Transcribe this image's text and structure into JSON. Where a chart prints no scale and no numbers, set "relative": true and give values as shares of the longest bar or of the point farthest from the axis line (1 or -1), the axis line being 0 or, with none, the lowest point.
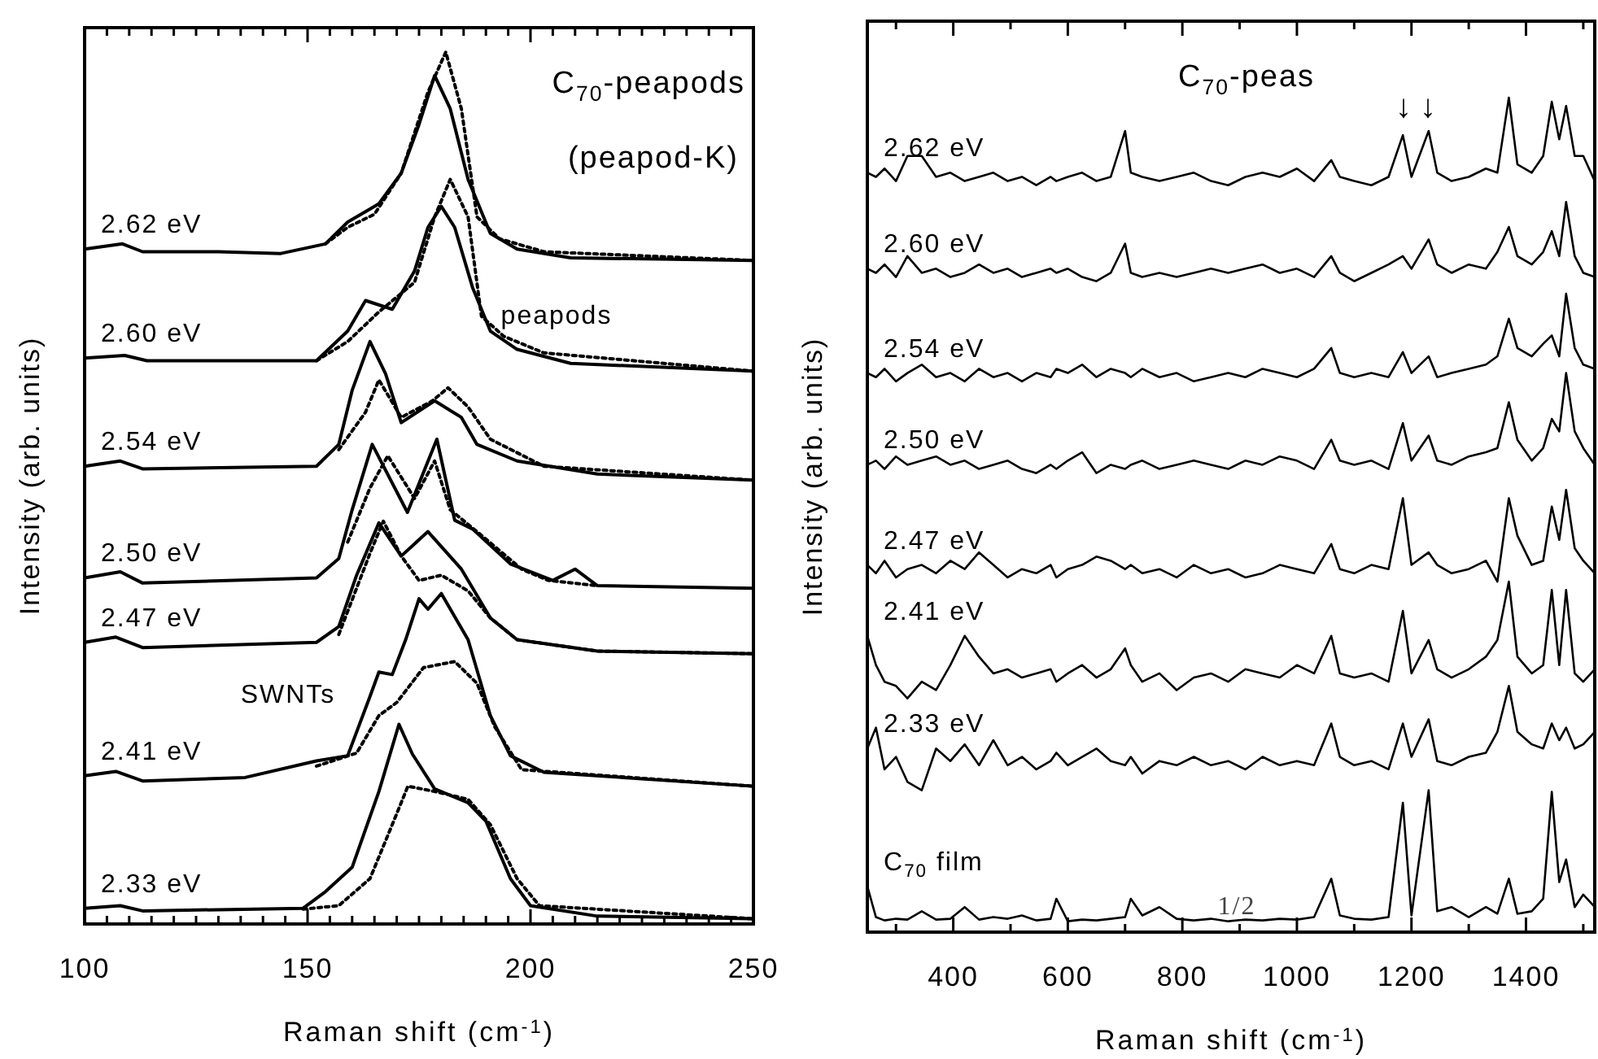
{
  "chart_data": [
    {
      "type": "line",
      "relative": true,
      "title": "C$_{70}$-peapods",
      "subtitle": "(peapod-K)",
      "xlabel": "Raman shift (cm$^{-1}$)",
      "ylabel": "Intensity (arb. units)",
      "xlim": [
        100,
        250
      ],
      "xticks": [
        100,
        {
          "value": 105,
          "label": null
        },
        {
          "value": 110,
          "label": null
        },
        {
          "value": 115,
          "label": null
        },
        {
          "value": 120,
          "label": null
        },
        {
          "value": 125,
          "label": null
        },
        {
          "value": 130,
          "label": null
        },
        {
          "value": 135,
          "label": null
        },
        {
          "value": 140,
          "label": null
        },
        {
          "value": 145,
          "label": null
        },
        150,
        {
          "value": 155,
          "label": null
        },
        {
          "value": 160,
          "label": null
        },
        {
          "value": 165,
          "label": null
        },
        {
          "value": 170,
          "label": null
        },
        {
          "value": 175,
          "label": null
        },
        {
          "value": 180,
          "label": null
        },
        {
          "value": 185,
          "label": null
        },
        {
          "value": 190,
          "label": null
        },
        {
          "value": 195,
          "label": null
        },
        200,
        {
          "value": 205,
          "label": null
        },
        {
          "value": 210,
          "label": null
        },
        {
          "value": 215,
          "label": null
        },
        {
          "value": 220,
          "label": null
        },
        {
          "value": 225,
          "label": null
        },
        {
          "value": 230,
          "label": null
        },
        {
          "value": 235,
          "label": null
        },
        {
          "value": 240,
          "label": null
        },
        {
          "value": 245,
          "label": null
        },
        250
      ],
      "annotations": [
        "peapods",
        "SWNTs"
      ],
      "series": [
        {
          "name": "2.62 eV",
          "color": "#000000",
          "line_style": "solid",
          "x": [
            100,
            108.5,
            113,
            130,
            144,
            154,
            159,
            164,
            166,
            171,
            175,
            178.5,
            182,
            186,
            191,
            197,
            209,
            250
          ],
          "values": [
            0.774,
            0.78,
            0.771,
            0.771,
            0.769,
            0.78,
            0.805,
            0.82,
            0.826,
            0.861,
            0.917,
            0.973,
            0.935,
            0.854,
            0.792,
            0.774,
            0.764,
            0.761
          ]
        },
        {
          "color": "#000000",
          "line_style": "dotted",
          "x": [
            154,
            159,
            165,
            171,
            177,
            181,
            184.5,
            188,
            193,
            203,
            250
          ],
          "values": [
            0.78,
            0.799,
            0.814,
            0.861,
            0.954,
            1.0,
            0.935,
            0.811,
            0.786,
            0.771,
            0.761
          ]
        },
        {
          "name": "2.60 eV",
          "color": "#000000",
          "line_style": "solid",
          "x": [
            100,
            109,
            114,
            152,
            159,
            163,
            169,
            174,
            177,
            180,
            183,
            187,
            191,
            197,
            209,
            250
          ],
          "values": [
            0.649,
            0.652,
            0.646,
            0.646,
            0.68,
            0.715,
            0.705,
            0.749,
            0.799,
            0.823,
            0.799,
            0.73,
            0.68,
            0.659,
            0.643,
            0.634
          ]
        },
        {
          "color": "#000000",
          "line_style": "dotted",
          "x": [
            152,
            159,
            166,
            174,
            178.5,
            182,
            186,
            189,
            194,
            203,
            250
          ],
          "values": [
            0.646,
            0.668,
            0.702,
            0.736,
            0.811,
            0.854,
            0.811,
            0.697,
            0.674,
            0.655,
            0.634
          ]
        },
        {
          "name": "2.54 eV",
          "color": "#000000",
          "line_style": "solid",
          "x": [
            100,
            108,
            113,
            152,
            157,
            160,
            164,
            167.5,
            171,
            178.5,
            184.5,
            188,
            197,
            215,
            250
          ],
          "values": [
            0.525,
            0.531,
            0.522,
            0.525,
            0.55,
            0.612,
            0.668,
            0.631,
            0.575,
            0.6,
            0.581,
            0.55,
            0.531,
            0.516,
            0.509
          ]
        },
        {
          "color": "#000000",
          "line_style": "dotted",
          "x": [
            157,
            163,
            166,
            171,
            178,
            181.5,
            186,
            191,
            203,
            250
          ],
          "values": [
            0.544,
            0.587,
            0.624,
            0.581,
            0.6,
            0.615,
            0.593,
            0.556,
            0.525,
            0.509
          ]
        },
        {
          "name": "2.50 eV",
          "color": "#000000",
          "line_style": "solid",
          "x": [
            100,
            108,
            113,
            152,
            157,
            160,
            164.5,
            172.4,
            179,
            183,
            187,
            195.5,
            205,
            210,
            215,
            250
          ],
          "values": [
            0.397,
            0.404,
            0.391,
            0.397,
            0.419,
            0.475,
            0.55,
            0.472,
            0.556,
            0.463,
            0.453,
            0.413,
            0.394,
            0.407,
            0.388,
            0.385
          ]
        },
        {
          "color": "#000000",
          "line_style": "dotted",
          "x": [
            159,
            164,
            168,
            174,
            178.5,
            182,
            188,
            198,
            204,
            215
          ],
          "values": [
            0.438,
            0.5,
            0.537,
            0.488,
            0.531,
            0.475,
            0.45,
            0.407,
            0.394,
            0.388
          ]
        },
        {
          "name": "2.47 eV",
          "color": "#000000",
          "line_style": "solid",
          "x": [
            100,
            107,
            113,
            152,
            157,
            161,
            166,
            171,
            177,
            184.5,
            191,
            197,
            215,
            250
          ],
          "values": [
            0.323,
            0.329,
            0.317,
            0.323,
            0.341,
            0.4,
            0.46,
            0.422,
            0.45,
            0.407,
            0.351,
            0.326,
            0.313,
            0.31
          ]
        },
        {
          "color": "#000000",
          "line_style": "dotted",
          "x": [
            157,
            164,
            167,
            171,
            175,
            180,
            186,
            191,
            197,
            215,
            250
          ],
          "values": [
            0.332,
            0.425,
            0.462,
            0.422,
            0.394,
            0.4,
            0.382,
            0.351,
            0.326,
            0.313,
            0.31
          ]
        },
        {
          "name": "2.41 eV",
          "color": "#000000",
          "line_style": "solid",
          "x": [
            100,
            107,
            113,
            136,
            152,
            159,
            164,
            166,
            169,
            172,
            175,
            177,
            180,
            186,
            191,
            195.5,
            203,
            250
          ],
          "values": [
            0.17,
            0.175,
            0.164,
            0.168,
            0.187,
            0.193,
            0.261,
            0.289,
            0.286,
            0.326,
            0.373,
            0.361,
            0.379,
            0.326,
            0.239,
            0.193,
            0.174,
            0.158
          ]
        },
        {
          "color": "#000000",
          "line_style": "dotted",
          "x": [
            152,
            161,
            166,
            170,
            176,
            183,
            188,
            192,
            198,
            250
          ],
          "values": [
            0.181,
            0.196,
            0.239,
            0.254,
            0.294,
            0.301,
            0.276,
            0.226,
            0.177,
            0.158
          ]
        },
        {
          "name": "2.33 eV",
          "color": "#000000",
          "line_style": "solid",
          "x": [
            100,
            108,
            113,
            149,
            154,
            160,
            166,
            170.5,
            173.5,
            178.5,
            186,
            190,
            195.5,
            200,
            215,
            250
          ],
          "values": [
            0.018,
            0.021,
            0.015,
            0.018,
            0.037,
            0.065,
            0.152,
            0.229,
            0.195,
            0.155,
            0.139,
            0.118,
            0.052,
            0.021,
            0.009,
            0.006
          ]
        },
        {
          "color": "#000000",
          "line_style": "dotted",
          "x": [
            149,
            157,
            164,
            169,
            172.5,
            178.5,
            186,
            191,
            197,
            202,
            250
          ],
          "values": [
            0.017,
            0.021,
            0.052,
            0.114,
            0.158,
            0.152,
            0.143,
            0.114,
            0.052,
            0.021,
            0.006
          ]
        }
      ]
    },
    {
      "type": "line",
      "relative": true,
      "title": "C$_{70}$-peas",
      "xlabel": "Raman shift (cm$^{-1}$)",
      "ylabel": "Intensity (arb. units)",
      "xlim": [
        250,
        1520
      ],
      "xticks": [
        {
          "value": 300,
          "label": null
        },
        400,
        {
          "value": 500,
          "label": null
        },
        600,
        {
          "value": 700,
          "label": null
        },
        800,
        {
          "value": 900,
          "label": null
        },
        1000,
        {
          "value": 1100,
          "label": null
        },
        1200,
        {
          "value": 1300,
          "label": null
        },
        1400,
        {
          "value": 1500,
          "label": null
        }
      ],
      "annotations": [
        "↓",
        "↓",
        "1/2"
      ],
      "x": [
        250,
        265,
        280,
        300,
        320,
        345,
        370,
        395,
        420,
        445,
        470,
        495,
        520,
        545,
        570,
        580,
        600,
        625,
        650,
        675,
        700,
        710,
        730,
        760,
        790,
        820,
        850,
        880,
        910,
        940,
        970,
        1000,
        1030,
        1060,
        1075,
        1100,
        1130,
        1160,
        1185,
        1200,
        1230,
        1245,
        1270,
        1300,
        1330,
        1350,
        1370,
        1385,
        1410,
        1430,
        1445,
        1458,
        1470,
        1485,
        1500,
        1520
      ],
      "series": [
        {
          "name": "2.62 eV",
          "color": "#000000",
          "values": [
            0.91,
            0.905,
            0.915,
            0.9,
            0.93,
            0.93,
            0.905,
            0.91,
            0.9,
            0.905,
            0.91,
            0.9,
            0.905,
            0.895,
            0.905,
            0.9,
            0.905,
            0.91,
            0.9,
            0.905,
            0.96,
            0.91,
            0.905,
            0.9,
            0.905,
            0.91,
            0.9,
            0.895,
            0.905,
            0.91,
            0.905,
            0.915,
            0.9,
            0.925,
            0.905,
            0.9,
            0.895,
            0.905,
            0.955,
            0.905,
            0.96,
            0.91,
            0.9,
            0.905,
            0.915,
            0.91,
            1.0,
            0.92,
            0.91,
            0.93,
            0.995,
            0.95,
            0.99,
            0.93,
            0.93,
            0.9
          ]
        },
        {
          "name": "2.60 eV",
          "color": "#000000",
          "values": [
            0.795,
            0.79,
            0.8,
            0.785,
            0.81,
            0.79,
            0.795,
            0.785,
            0.79,
            0.8,
            0.79,
            0.795,
            0.785,
            0.79,
            0.795,
            0.79,
            0.795,
            0.785,
            0.78,
            0.79,
            0.825,
            0.79,
            0.785,
            0.79,
            0.785,
            0.79,
            0.795,
            0.79,
            0.795,
            0.8,
            0.79,
            0.795,
            0.785,
            0.81,
            0.79,
            0.78,
            0.79,
            0.8,
            0.81,
            0.795,
            0.83,
            0.8,
            0.79,
            0.8,
            0.795,
            0.815,
            0.845,
            0.81,
            0.8,
            0.815,
            0.84,
            0.81,
            0.875,
            0.81,
            0.79,
            0.785
          ]
        },
        {
          "name": "2.54 eV",
          "color": "#000000",
          "values": [
            0.67,
            0.665,
            0.675,
            0.66,
            0.67,
            0.68,
            0.665,
            0.67,
            0.66,
            0.675,
            0.665,
            0.67,
            0.66,
            0.67,
            0.665,
            0.675,
            0.67,
            0.68,
            0.665,
            0.675,
            0.67,
            0.665,
            0.675,
            0.665,
            0.67,
            0.66,
            0.665,
            0.67,
            0.665,
            0.675,
            0.67,
            0.665,
            0.675,
            0.7,
            0.67,
            0.665,
            0.67,
            0.665,
            0.695,
            0.67,
            0.69,
            0.665,
            0.67,
            0.675,
            0.68,
            0.69,
            0.735,
            0.7,
            0.69,
            0.705,
            0.715,
            0.69,
            0.765,
            0.7,
            0.68,
            0.675
          ]
        },
        {
          "name": "2.50 eV",
          "color": "#000000",
          "values": [
            0.56,
            0.565,
            0.555,
            0.57,
            0.56,
            0.565,
            0.57,
            0.56,
            0.565,
            0.555,
            0.56,
            0.565,
            0.555,
            0.55,
            0.56,
            0.555,
            0.565,
            0.575,
            0.55,
            0.56,
            0.555,
            0.56,
            0.565,
            0.555,
            0.56,
            0.565,
            0.56,
            0.555,
            0.565,
            0.56,
            0.57,
            0.565,
            0.555,
            0.59,
            0.565,
            0.56,
            0.565,
            0.555,
            0.61,
            0.565,
            0.595,
            0.565,
            0.56,
            0.57,
            0.575,
            0.58,
            0.635,
            0.59,
            0.565,
            0.58,
            0.615,
            0.6,
            0.67,
            0.6,
            0.58,
            0.56
          ]
        },
        {
          "name": "2.47 eV",
          "color": "#000000",
          "values": [
            0.44,
            0.43,
            0.445,
            0.425,
            0.435,
            0.44,
            0.43,
            0.445,
            0.435,
            0.455,
            0.44,
            0.425,
            0.435,
            0.43,
            0.44,
            0.425,
            0.435,
            0.44,
            0.45,
            0.445,
            0.435,
            0.44,
            0.43,
            0.435,
            0.425,
            0.44,
            0.43,
            0.435,
            0.425,
            0.43,
            0.44,
            0.435,
            0.43,
            0.465,
            0.435,
            0.43,
            0.44,
            0.435,
            0.52,
            0.44,
            0.455,
            0.44,
            0.43,
            0.435,
            0.445,
            0.42,
            0.52,
            0.475,
            0.44,
            0.445,
            0.51,
            0.47,
            0.53,
            0.46,
            0.445,
            0.43
          ]
        },
        {
          "name": "2.41 eV",
          "color": "#000000",
          "values": [
            0.355,
            0.32,
            0.3,
            0.295,
            0.28,
            0.3,
            0.29,
            0.32,
            0.355,
            0.33,
            0.31,
            0.315,
            0.305,
            0.31,
            0.315,
            0.3,
            0.31,
            0.32,
            0.305,
            0.315,
            0.34,
            0.32,
            0.3,
            0.31,
            0.29,
            0.305,
            0.31,
            0.3,
            0.315,
            0.31,
            0.305,
            0.32,
            0.31,
            0.355,
            0.31,
            0.305,
            0.31,
            0.3,
            0.385,
            0.31,
            0.35,
            0.315,
            0.305,
            0.315,
            0.33,
            0.35,
            0.42,
            0.33,
            0.31,
            0.32,
            0.41,
            0.32,
            0.41,
            0.31,
            0.3,
            0.315
          ]
        },
        {
          "name": "2.33 eV",
          "color": "#000000",
          "values": [
            0.22,
            0.245,
            0.195,
            0.21,
            0.18,
            0.17,
            0.22,
            0.205,
            0.225,
            0.2,
            0.23,
            0.2,
            0.21,
            0.195,
            0.205,
            0.215,
            0.2,
            0.21,
            0.22,
            0.205,
            0.2,
            0.21,
            0.19,
            0.205,
            0.2,
            0.21,
            0.2,
            0.205,
            0.195,
            0.21,
            0.2,
            0.205,
            0.2,
            0.25,
            0.21,
            0.2,
            0.205,
            0.195,
            0.25,
            0.21,
            0.255,
            0.205,
            0.2,
            0.21,
            0.215,
            0.24,
            0.295,
            0.24,
            0.225,
            0.22,
            0.25,
            0.23,
            0.245,
            0.22,
            0.225,
            0.24
          ]
        },
        {
          "name": "C$_{70}$ film",
          "color": "#000000",
          "values": [
            0.055,
            0.018,
            0.014,
            0.016,
            0.015,
            0.025,
            0.015,
            0.016,
            0.03,
            0.015,
            0.018,
            0.016,
            0.02,
            0.014,
            0.016,
            0.04,
            0.013,
            0.015,
            0.014,
            0.016,
            0.018,
            0.04,
            0.02,
            0.03,
            0.016,
            0.014,
            0.016,
            0.013,
            0.015,
            0.014,
            0.016,
            0.015,
            0.018,
            0.064,
            0.02,
            0.016,
            0.015,
            0.018,
            0.155,
            0.02,
            0.17,
            0.025,
            0.03,
            0.018,
            0.03,
            0.022,
            0.064,
            0.022,
            0.025,
            0.04,
            0.168,
            0.06,
            0.087,
            0.03,
            0.045,
            0.03
          ]
        }
      ]
    }
  ]
}
